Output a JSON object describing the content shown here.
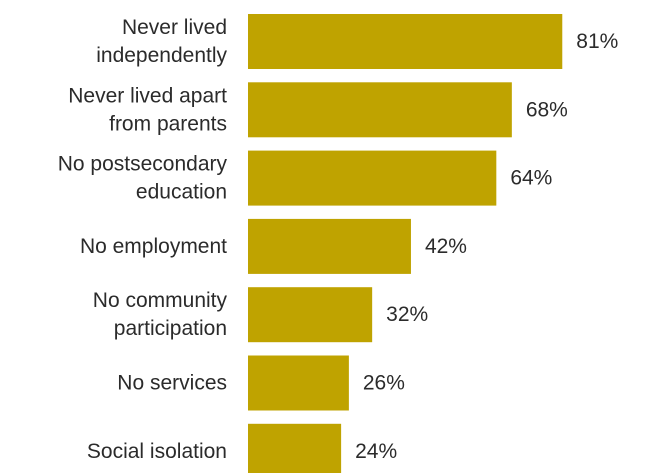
{
  "chart_data": {
    "type": "bar",
    "orientation": "horizontal",
    "categories": [
      [
        "Never lived",
        "independently"
      ],
      [
        "Never lived apart",
        "from parents"
      ],
      [
        "No postsecondary",
        "education"
      ],
      [
        "No employment"
      ],
      [
        "No community",
        "participation"
      ],
      [
        "No services"
      ],
      [
        "Social isolation"
      ]
    ],
    "values": [
      81,
      68,
      64,
      42,
      32,
      26,
      24
    ],
    "value_labels": [
      "81%",
      "68%",
      "64%",
      "42%",
      "32%",
      "26%",
      "24%"
    ],
    "value_unit": "%",
    "xlim": [
      0,
      100
    ],
    "bar_color": "#bfa300",
    "text_color": "#2b2b2b",
    "title": "",
    "xlabel": "",
    "ylabel": "",
    "grid": false,
    "legend": "none"
  }
}
